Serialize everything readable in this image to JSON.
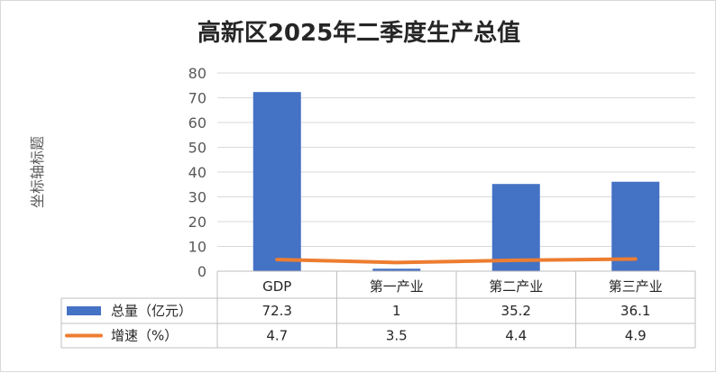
{
  "chart_data": {
    "type": "bar",
    "title": "高新区2025年二季度生产总值",
    "ylabel": "坐标轴标题",
    "xlabel": "",
    "ylim": [
      0,
      80
    ],
    "yticks": [
      0,
      10,
      20,
      30,
      40,
      50,
      60,
      70,
      80
    ],
    "grid": true,
    "legend": "data-table-left",
    "categories": [
      "GDP",
      "第一产业",
      "第二产业",
      "第三产业"
    ],
    "series": [
      {
        "name": "总量（亿元）",
        "type": "bar",
        "color": "#4472c4",
        "values": [
          72.3,
          1,
          35.2,
          36.1
        ],
        "labels": [
          "72.3",
          "1",
          "35.2",
          "36.1"
        ]
      },
      {
        "name": "增速（%）",
        "type": "line",
        "color": "#ed7d31",
        "values": [
          4.7,
          3.5,
          4.4,
          4.9
        ],
        "labels": [
          "4.7",
          "3.5",
          "4.4",
          "4.9"
        ]
      }
    ]
  }
}
